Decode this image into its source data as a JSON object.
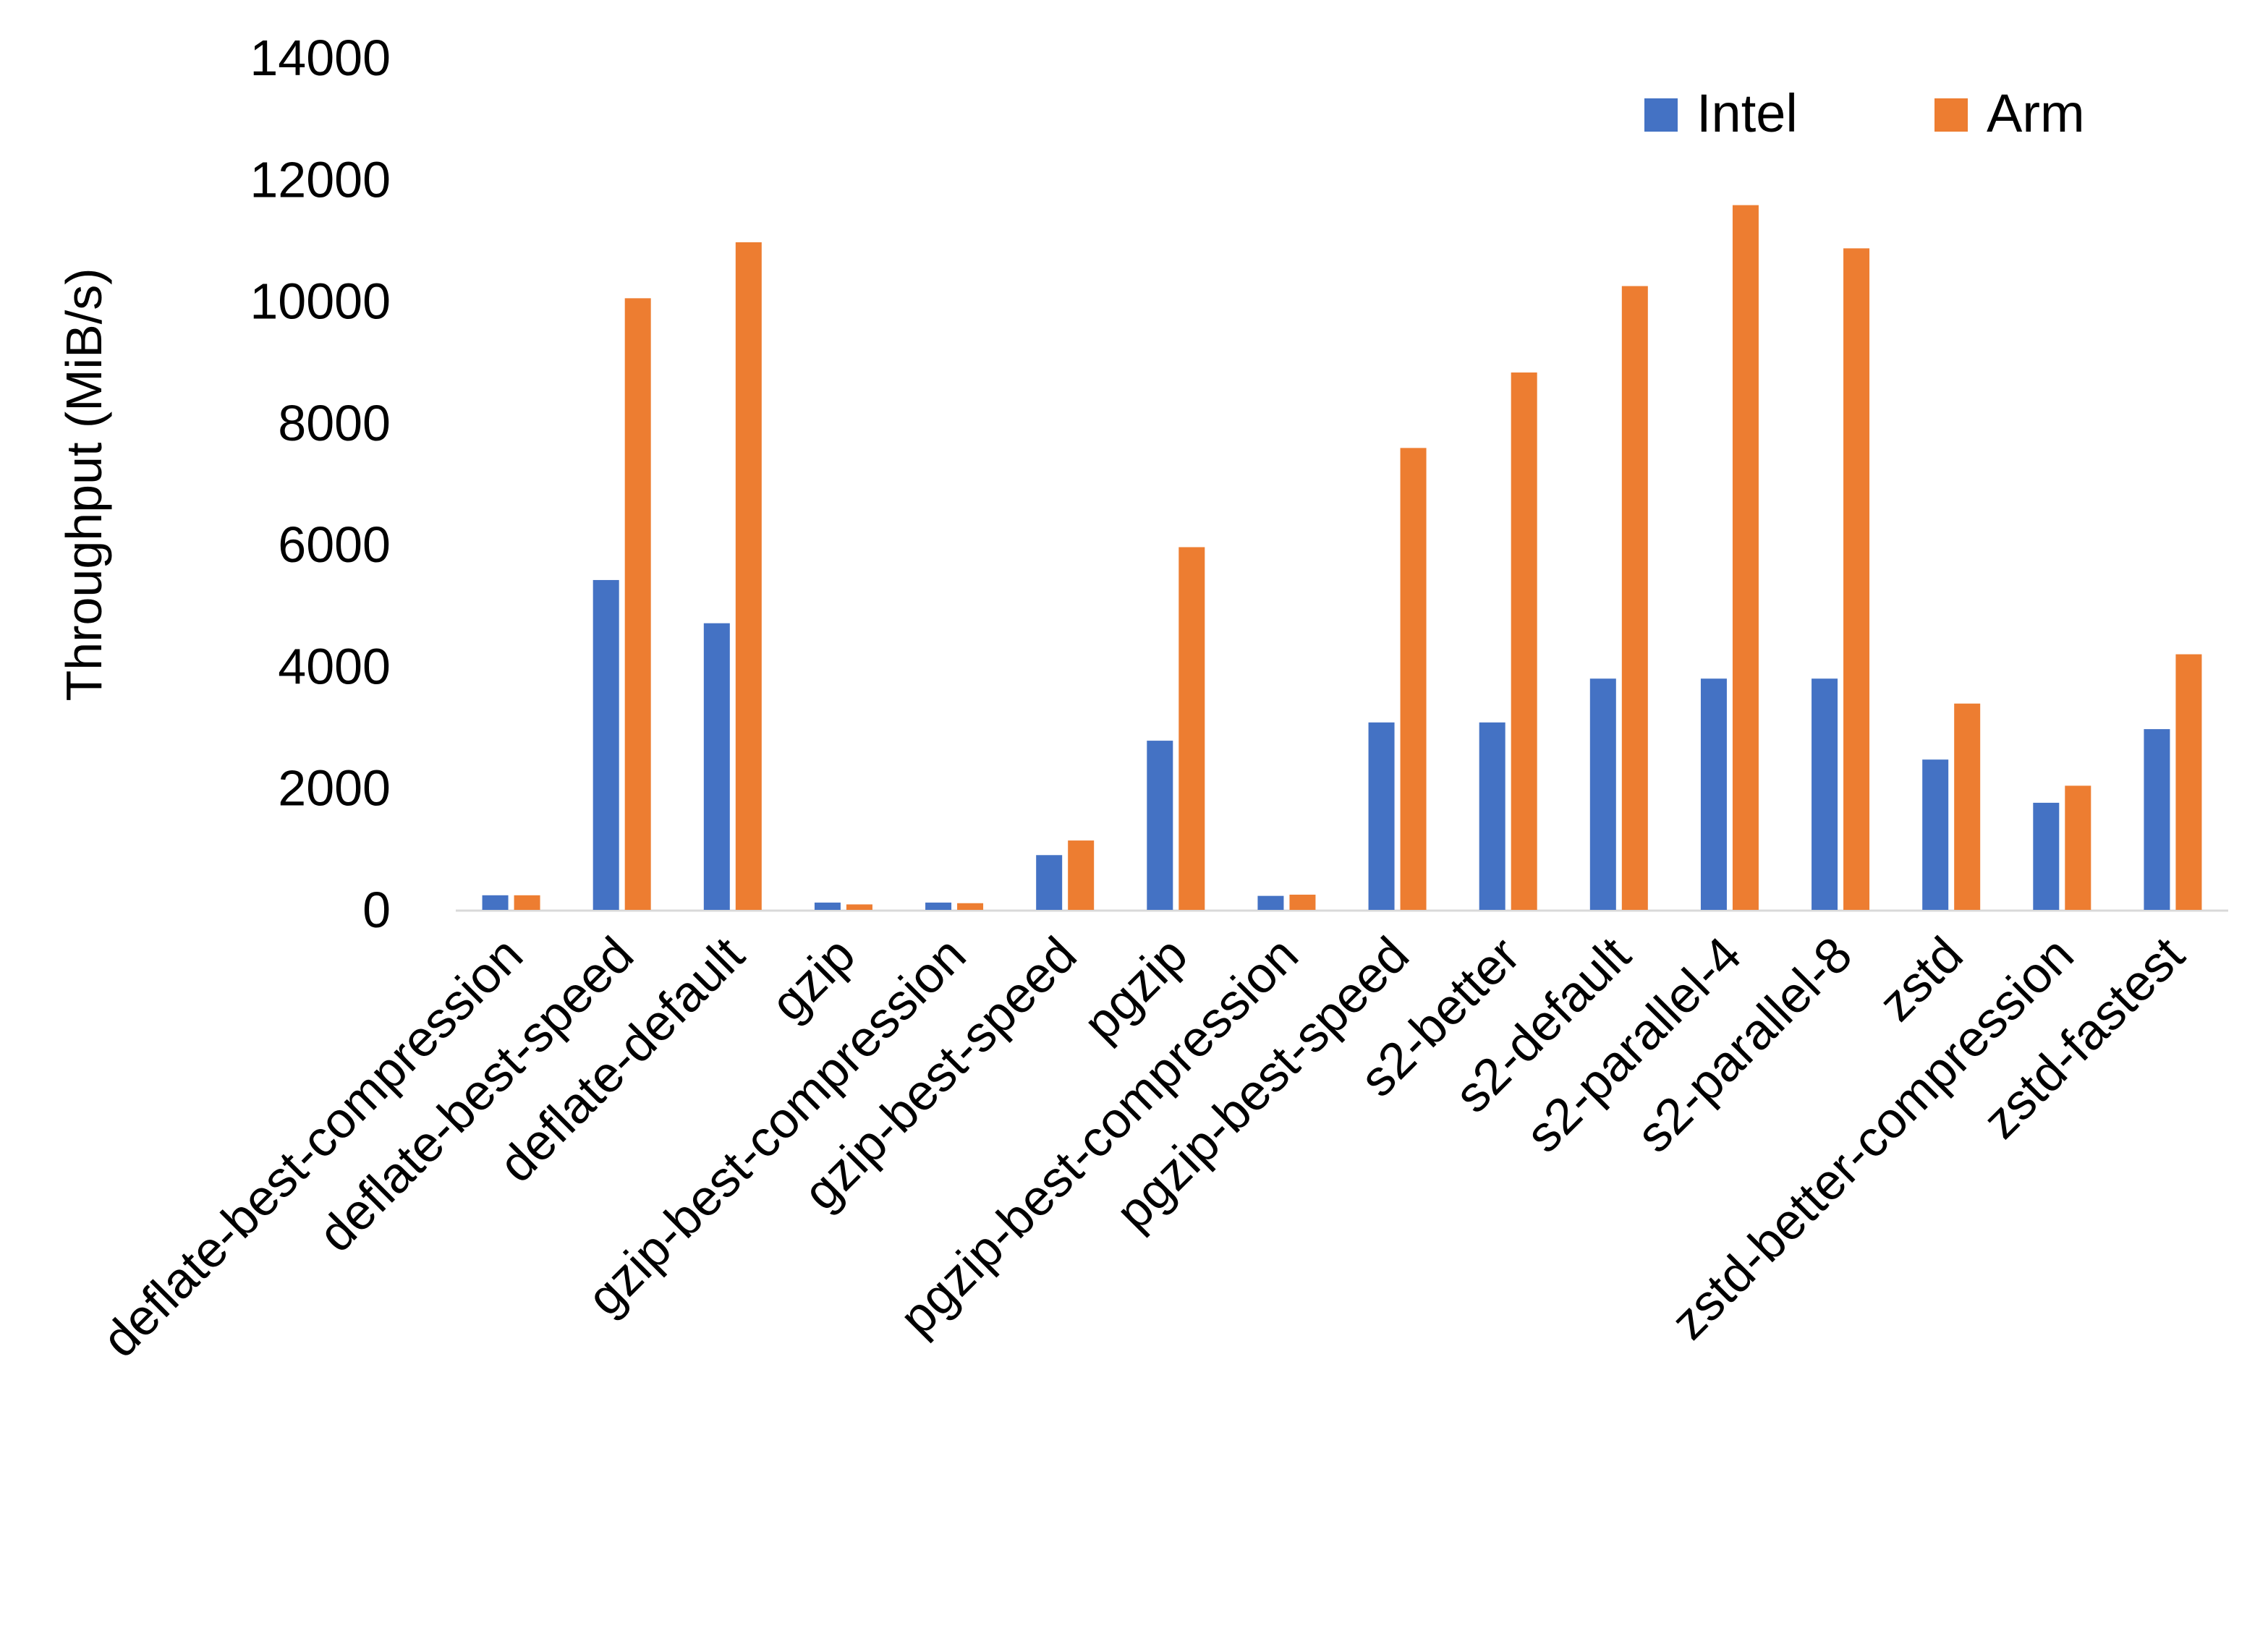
{
  "chart_data": {
    "type": "bar",
    "title": "",
    "xlabel": "",
    "ylabel": "Throughput (MiB/s)",
    "ylim": [
      0,
      14000
    ],
    "yticks": [
      "0",
      "2000",
      "4000",
      "6000",
      "8000",
      "10000",
      "12000",
      "14000"
    ],
    "grid": false,
    "legend_position": "top-right",
    "categories": [
      "deflate-best-compression",
      "deflate-best-speed",
      "deflate-default",
      "gzip",
      "gzip-best-compression",
      "gzip-best-speed",
      "pgzip",
      "pgzip-best-compression",
      "pgzip-best-speed",
      "s2-better",
      "s2-default",
      "s2-parallel-4",
      "s2-parallel-8",
      "zstd",
      "zstd-better-compression",
      "zstd-fastest"
    ],
    "series": [
      {
        "name": "Intel",
        "color": "#4472C4",
        "values": [
          240,
          5420,
          4710,
          120,
          120,
          900,
          2780,
          230,
          3080,
          3080,
          3800,
          3800,
          3800,
          2470,
          1760,
          2970
        ]
      },
      {
        "name": "Arm",
        "color": "#ED7D31",
        "values": [
          240,
          10050,
          10970,
          90,
          110,
          1140,
          5960,
          250,
          7590,
          8830,
          10250,
          11580,
          10870,
          3390,
          2040,
          4200
        ]
      }
    ]
  }
}
